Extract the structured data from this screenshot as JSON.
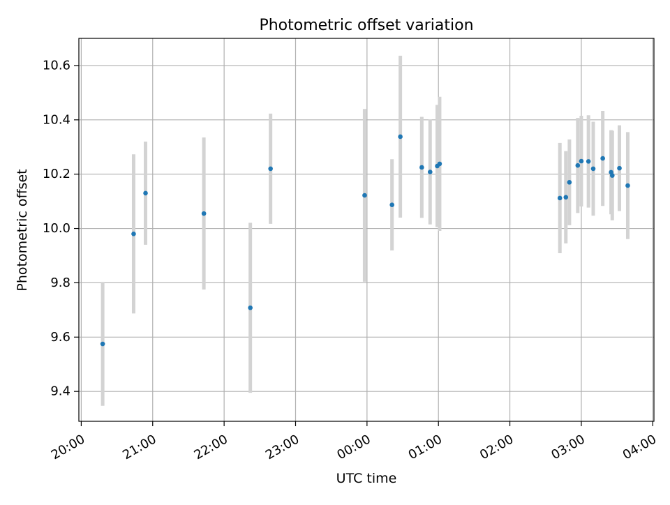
{
  "chart_data": {
    "type": "scatter",
    "title": "Photometric offset variation",
    "xlabel": "UTC time",
    "ylabel": "Photometric offset",
    "x_ticks": [
      "20:00",
      "21:00",
      "22:00",
      "23:00",
      "00:00",
      "01:00",
      "02:00",
      "03:00",
      "04:00"
    ],
    "x_tick_hours": [
      20,
      21,
      22,
      23,
      24,
      25,
      26,
      27,
      28
    ],
    "y_ticks": [
      "9.4",
      "9.6",
      "9.8",
      "10.0",
      "10.2",
      "10.4",
      "10.6"
    ],
    "y_tick_values": [
      9.4,
      9.6,
      9.8,
      10.0,
      10.2,
      10.4,
      10.6
    ],
    "xlim": [
      "19:58",
      "04:01"
    ],
    "ylim": [
      9.29,
      10.7
    ],
    "grid": true,
    "point_color": "#1f77b4",
    "errorbar_color": "#d3d3d3",
    "points": [
      {
        "time": "20:18",
        "y": 9.575,
        "err": 0.228
      },
      {
        "time": "20:44",
        "y": 9.98,
        "err": 0.293
      },
      {
        "time": "20:54",
        "y": 10.13,
        "err": 0.19
      },
      {
        "time": "21:43",
        "y": 10.055,
        "err": 0.28
      },
      {
        "time": "22:22",
        "y": 9.708,
        "err": 0.313
      },
      {
        "time": "22:39",
        "y": 10.22,
        "err": 0.203
      },
      {
        "time": "23:58",
        "y": 10.122,
        "err": 0.318
      },
      {
        "time": "00:21",
        "y": 10.087,
        "err": 0.168
      },
      {
        "time": "00:28",
        "y": 10.338,
        "err": 0.298
      },
      {
        "time": "00:46",
        "y": 10.225,
        "err": 0.186
      },
      {
        "time": "00:53",
        "y": 10.208,
        "err": 0.193
      },
      {
        "time": "00:59",
        "y": 10.23,
        "err": 0.225
      },
      {
        "time": "01:01",
        "y": 10.238,
        "err": 0.247
      },
      {
        "time": "02:42",
        "y": 10.112,
        "err": 0.203
      },
      {
        "time": "02:47",
        "y": 10.115,
        "err": 0.17
      },
      {
        "time": "02:50",
        "y": 10.17,
        "err": 0.158
      },
      {
        "time": "02:57",
        "y": 10.232,
        "err": 0.175
      },
      {
        "time": "03:00",
        "y": 10.248,
        "err": 0.167
      },
      {
        "time": "03:06",
        "y": 10.247,
        "err": 0.17
      },
      {
        "time": "03:10",
        "y": 10.22,
        "err": 0.173
      },
      {
        "time": "03:18",
        "y": 10.258,
        "err": 0.175
      },
      {
        "time": "03:25",
        "y": 10.207,
        "err": 0.155
      },
      {
        "time": "03:26",
        "y": 10.195,
        "err": 0.165
      },
      {
        "time": "03:32",
        "y": 10.222,
        "err": 0.158
      },
      {
        "time": "03:39",
        "y": 10.158,
        "err": 0.197
      }
    ]
  }
}
